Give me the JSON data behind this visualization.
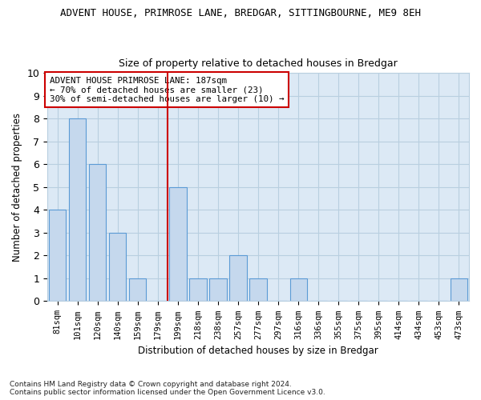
{
  "title": "ADVENT HOUSE, PRIMROSE LANE, BREDGAR, SITTINGBOURNE, ME9 8EH",
  "subtitle": "Size of property relative to detached houses in Bredgar",
  "xlabel": "Distribution of detached houses by size in Bredgar",
  "ylabel": "Number of detached properties",
  "categories": [
    "81sqm",
    "101sqm",
    "120sqm",
    "140sqm",
    "159sqm",
    "179sqm",
    "199sqm",
    "218sqm",
    "238sqm",
    "257sqm",
    "277sqm",
    "297sqm",
    "316sqm",
    "336sqm",
    "355sqm",
    "375sqm",
    "395sqm",
    "414sqm",
    "434sqm",
    "453sqm",
    "473sqm"
  ],
  "values": [
    4,
    8,
    6,
    3,
    1,
    0,
    5,
    1,
    1,
    2,
    1,
    0,
    1,
    0,
    0,
    0,
    0,
    0,
    0,
    0,
    1
  ],
  "bar_color": "#c5d8ed",
  "bar_edge_color": "#5b9bd5",
  "grid_color": "#c5d8ed",
  "bg_color": "#dce9f5",
  "vline_x_index": 6,
  "vline_color": "#cc0000",
  "annotation_line1": "ADVENT HOUSE PRIMROSE LANE: 187sqm",
  "annotation_line2": "← 70% of detached houses are smaller (23)",
  "annotation_line3": "30% of semi-detached houses are larger (10) →",
  "annotation_box_color": "#ffffff",
  "annotation_box_edge": "#cc0000",
  "footer": "Contains HM Land Registry data © Crown copyright and database right 2024.\nContains public sector information licensed under the Open Government Licence v3.0.",
  "ylim": [
    0,
    10
  ],
  "yticks": [
    0,
    1,
    2,
    3,
    4,
    5,
    6,
    7,
    8,
    9,
    10
  ]
}
